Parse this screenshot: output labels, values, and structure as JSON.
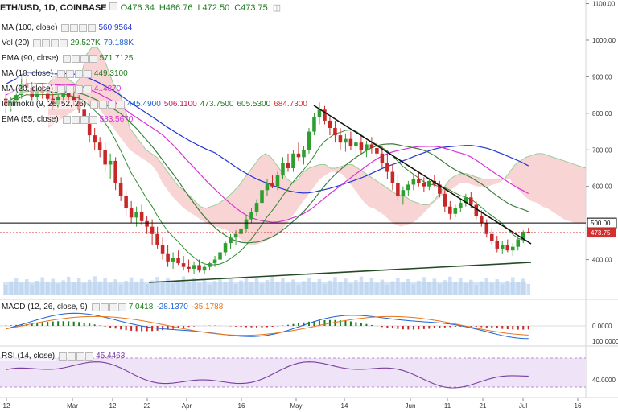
{
  "header": {
    "symbol": "ETH/USD, 1D, COINBASE",
    "open": "O476.34",
    "high": "H486.76",
    "low": "L472.50",
    "close": "C473.75"
  },
  "indicators": [
    {
      "id": "ma100",
      "name": "MA (100, close)",
      "values": [
        {
          "text": "560.9564",
          "color": "#2233d6"
        }
      ]
    },
    {
      "id": "vol",
      "name": "Vol (20)",
      "values": [
        {
          "text": "29.527K",
          "color": "#1e7b1e"
        },
        {
          "text": "79.188K",
          "color": "#1c64d8"
        }
      ]
    },
    {
      "id": "ema90",
      "name": "EMA (90, close)",
      "values": [
        {
          "text": "571.7125",
          "color": "#1e7b1e"
        }
      ]
    },
    {
      "id": "ma10",
      "name": "MA (10, close)",
      "values": [
        {
          "text": "449.3100",
          "color": "#1e7b1e"
        }
      ]
    },
    {
      "id": "ma20",
      "name": "MA (20, close)",
      "values": [
        {
          "text": "4..4370",
          "color": "#d633d6"
        }
      ]
    },
    {
      "id": "ichimoku",
      "name": "Ichimoku (9, 26, 52, 26)",
      "values": [
        {
          "text": "445.4900",
          "color": "#1c64d8"
        },
        {
          "text": "506.1100",
          "color": "#c2185b"
        },
        {
          "text": "473.7500",
          "color": "#1e7b1e"
        },
        {
          "text": "605.5300",
          "color": "#1e7b1e"
        },
        {
          "text": "684.7300",
          "color": "#d32f2f"
        }
      ]
    },
    {
      "id": "ema55",
      "name": "EMA (55, close)",
      "values": [
        {
          "text": "583.5670",
          "color": "#d633d6"
        }
      ]
    }
  ],
  "macd_legend": {
    "name": "MACD (12, 26, close, 9)",
    "values": [
      {
        "text": "7.0418",
        "color": "#1e7b1e"
      },
      {
        "text": "-28.1370",
        "color": "#1c64d8"
      },
      {
        "text": "-35.1788",
        "color": "#e8751a"
      }
    ]
  },
  "rsi_legend": {
    "name": "RSI (14, close)",
    "values": [
      {
        "text": "45.4463",
        "color": "#7a3fa0"
      }
    ]
  },
  "price_axis": {
    "ticks": [
      "1100.00",
      "1000.00",
      "900.00",
      "800.00",
      "700.00",
      "600.00",
      "400.00"
    ]
  },
  "macd_axis": {
    "ticks": [
      "0.0000",
      "100.0000"
    ]
  },
  "rsi_axis": {
    "ticks": [
      "40.0000"
    ]
  },
  "time_axis": {
    "ticks": [
      "12",
      "Mar",
      "12",
      "22",
      "Apr",
      "16",
      "May",
      "14",
      "Jun",
      "11",
      "21",
      "Jul",
      "16"
    ]
  },
  "price_tags": {
    "level": {
      "text": "500.00",
      "value": 500,
      "color": "#000000"
    },
    "last": {
      "text": "473.75",
      "value": 473.75,
      "color": "#d32f2f"
    }
  },
  "chart_data": {
    "type": "candlestick",
    "price_range": [
      300,
      1110
    ],
    "horizontal_level": 500,
    "last_price": 473.75,
    "candles": [
      [
        840,
        860,
        800,
        820
      ],
      [
        820,
        845,
        805,
        835
      ],
      [
        835,
        860,
        820,
        850
      ],
      [
        850,
        905,
        840,
        880
      ],
      [
        880,
        900,
        850,
        870
      ],
      [
        870,
        885,
        830,
        845
      ],
      [
        845,
        870,
        820,
        860
      ],
      [
        860,
        880,
        840,
        855
      ],
      [
        855,
        875,
        830,
        840
      ],
      [
        840,
        860,
        810,
        825
      ],
      [
        825,
        850,
        815,
        845
      ],
      [
        845,
        870,
        830,
        860
      ],
      [
        860,
        875,
        835,
        845
      ],
      [
        845,
        860,
        820,
        835
      ],
      [
        835,
        850,
        800,
        810
      ],
      [
        810,
        830,
        780,
        790
      ],
      [
        790,
        800,
        720,
        740
      ],
      [
        740,
        760,
        700,
        720
      ],
      [
        720,
        735,
        680,
        700
      ],
      [
        700,
        720,
        640,
        660
      ],
      [
        660,
        690,
        620,
        670
      ],
      [
        670,
        680,
        590,
        610
      ],
      [
        610,
        625,
        560,
        575
      ],
      [
        575,
        590,
        520,
        540
      ],
      [
        540,
        560,
        500,
        515
      ],
      [
        515,
        545,
        490,
        530
      ],
      [
        530,
        550,
        495,
        505
      ],
      [
        505,
        520,
        470,
        490
      ],
      [
        490,
        510,
        440,
        470
      ],
      [
        470,
        490,
        430,
        440
      ],
      [
        440,
        460,
        400,
        415
      ],
      [
        415,
        440,
        380,
        395
      ],
      [
        395,
        420,
        375,
        405
      ],
      [
        405,
        425,
        385,
        390
      ],
      [
        390,
        410,
        370,
        380
      ],
      [
        380,
        400,
        365,
        375
      ],
      [
        375,
        395,
        360,
        385
      ],
      [
        385,
        400,
        365,
        370
      ],
      [
        370,
        385,
        360,
        380
      ],
      [
        380,
        395,
        370,
        390
      ],
      [
        390,
        410,
        380,
        400
      ],
      [
        400,
        425,
        390,
        420
      ],
      [
        420,
        450,
        410,
        445
      ],
      [
        445,
        470,
        430,
        460
      ],
      [
        460,
        480,
        440,
        470
      ],
      [
        470,
        495,
        455,
        485
      ],
      [
        485,
        520,
        475,
        510
      ],
      [
        510,
        540,
        500,
        530
      ],
      [
        530,
        565,
        520,
        555
      ],
      [
        555,
        600,
        545,
        590
      ],
      [
        590,
        620,
        575,
        610
      ],
      [
        610,
        630,
        595,
        600
      ],
      [
        600,
        640,
        590,
        630
      ],
      [
        630,
        680,
        620,
        665
      ],
      [
        665,
        690,
        640,
        650
      ],
      [
        650,
        700,
        640,
        690
      ],
      [
        690,
        720,
        670,
        680
      ],
      [
        680,
        710,
        660,
        700
      ],
      [
        700,
        760,
        690,
        750
      ],
      [
        750,
        800,
        740,
        790
      ],
      [
        790,
        830,
        770,
        810
      ],
      [
        810,
        820,
        770,
        780
      ],
      [
        780,
        790,
        740,
        760
      ],
      [
        760,
        780,
        720,
        740
      ],
      [
        740,
        760,
        700,
        720
      ],
      [
        720,
        745,
        695,
        730
      ],
      [
        730,
        750,
        700,
        710
      ],
      [
        710,
        730,
        680,
        720
      ],
      [
        720,
        740,
        690,
        700
      ],
      [
        700,
        725,
        680,
        715
      ],
      [
        715,
        735,
        690,
        705
      ],
      [
        705,
        720,
        670,
        690
      ],
      [
        690,
        710,
        650,
        665
      ],
      [
        665,
        690,
        620,
        640
      ],
      [
        640,
        660,
        590,
        610
      ],
      [
        610,
        630,
        560,
        575
      ],
      [
        575,
        600,
        550,
        590
      ],
      [
        590,
        615,
        575,
        605
      ],
      [
        605,
        630,
        590,
        620
      ],
      [
        620,
        640,
        600,
        610
      ],
      [
        610,
        625,
        585,
        600
      ],
      [
        600,
        620,
        590,
        615
      ],
      [
        615,
        630,
        600,
        605
      ],
      [
        605,
        615,
        570,
        580
      ],
      [
        580,
        590,
        530,
        545
      ],
      [
        545,
        560,
        510,
        525
      ],
      [
        525,
        550,
        515,
        540
      ],
      [
        540,
        565,
        530,
        555
      ],
      [
        555,
        580,
        545,
        570
      ],
      [
        570,
        585,
        540,
        550
      ],
      [
        550,
        560,
        510,
        520
      ],
      [
        520,
        535,
        490,
        500
      ],
      [
        500,
        510,
        460,
        470
      ],
      [
        470,
        485,
        440,
        450
      ],
      [
        450,
        465,
        420,
        430
      ],
      [
        430,
        450,
        415,
        440
      ],
      [
        440,
        455,
        420,
        425
      ],
      [
        425,
        445,
        410,
        435
      ],
      [
        435,
        460,
        425,
        455
      ],
      [
        455,
        480,
        445,
        476
      ],
      [
        476,
        487,
        472,
        474
      ]
    ],
    "volume_range": [
      0,
      300000
    ],
    "rsi_range": [
      20,
      80
    ],
    "rsi_bands": [
      70,
      30
    ],
    "macd_range": [
      -60,
      60
    ]
  }
}
